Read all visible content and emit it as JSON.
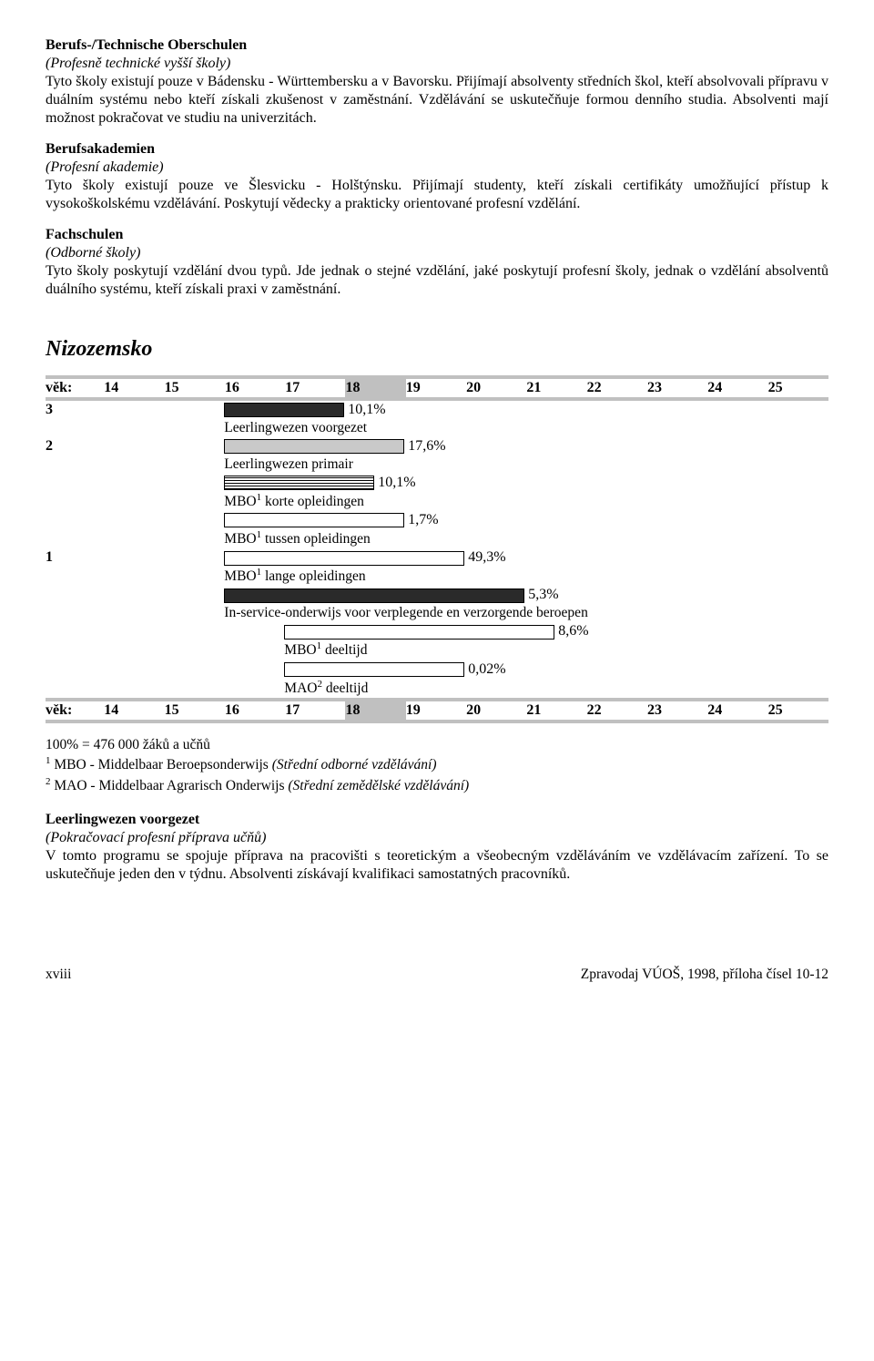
{
  "sections": [
    {
      "title": "Berufs-/Technische Oberschulen",
      "sub": "(Profesně technické vyšší školy)",
      "body": "Tyto školy existují pouze v Bádensku - Württembersku a v Bavorsku. Přijímají absolventy středních škol, kteří absolvovali přípravu v duálním systému nebo kteří získali zkušenost v zaměstnání. Vzdělávání se uskutečňuje formou denního studia. Absolventi mají možnost pokračovat ve studiu na univerzitách."
    },
    {
      "title": "Berufsakademien",
      "sub": "(Profesní akademie)",
      "body": "Tyto školy existují pouze ve Šlesvicku - Holštýnsku. Přijímají studenty, kteří získali certifikáty umožňující přístup k vysokoškolskému vzdělávání. Poskytují vědecky a prakticky orientované profesní vzdělání."
    },
    {
      "title": "Fachschulen",
      "sub": "(Odborné školy)",
      "body": "Tyto školy poskytují vzdělání dvou typů. Jde jednak o stejné vzdělání, jaké poskytují profesní školy, jednak o vzdělání absolventů duálního systému, kteří získali praxi v zaměstnání."
    }
  ],
  "country": "Nizozemsko",
  "ageLabel": "věk:",
  "ages": [
    "14",
    "15",
    "16",
    "17",
    "18",
    "19",
    "20",
    "21",
    "22",
    "23",
    "24",
    "25"
  ],
  "chart": {
    "row1": {
      "level": "3",
      "barClass": "bar-dark",
      "start": 2,
      "span": 2,
      "pct": "10,1%",
      "caption": "Leerlingwezen voorgezet"
    },
    "row2": {
      "level": "2",
      "barClass": "bar-grey",
      "start": 2,
      "span": 3,
      "pct": "17,6%",
      "caption": "Leerlingwezen primair"
    },
    "row3": {
      "level": "",
      "barClass": "bar-hatch",
      "start": 2,
      "span": 2.5,
      "pct": "10,1%",
      "caption": "MBO",
      "sup": "1",
      "caption2": " korte opleidingen"
    },
    "row4": {
      "level": "",
      "barClass": "bar-white",
      "start": 2,
      "span": 3,
      "pct": "1,7%",
      "caption": "MBO",
      "sup": "1",
      "caption2": " tussen opleidingen"
    },
    "row5": {
      "level": "1",
      "barClass": "bar-white",
      "start": 2,
      "span": 4,
      "pct": "49,3%",
      "caption": "MBO",
      "sup": "1",
      "caption2": " lange opleidingen"
    },
    "row6": {
      "level": "",
      "barClass": "bar-dark",
      "start": 2,
      "span": 5,
      "pct": "5,3%",
      "caption": "In-service-onderwijs voor verplegende en verzorgende beroepen"
    },
    "row7": {
      "level": "",
      "barClass": "bar-white",
      "start": 3,
      "span": 4.5,
      "pct": "8,6%",
      "caption": "MBO",
      "sup": "1",
      "caption2": " deeltijd"
    },
    "row8": {
      "level": "",
      "barClass": "bar-white",
      "start": 3,
      "span": 3,
      "pct": "0,02%",
      "caption": "MAO",
      "sup": "2",
      "caption2": " deeltijd"
    }
  },
  "footnotes": {
    "line1": "100% = 476 000 žáků a učňů",
    "line2a": " MBO - Middelbaar Beroepsonderwijs ",
    "line2b": "(Střední odborné vzdělávání)",
    "line3a": " MAO - Middelbaar Agrarisch Onderwijs ",
    "line3b": "(Střední zemědělské vzdělávání)"
  },
  "desc": {
    "title": "Leerlingwezen voorgezet",
    "sub": "(Pokračovací profesní příprava učňů)",
    "body": "V tomto programu se spojuje příprava na pracovišti s teoretickým a všeobecným vzděláváním ve vzdělávacím zařízení. To se uskutečňuje jeden den v týdnu. Absolventi získávají kvalifikaci samostatných pracovníků."
  },
  "footer": {
    "left": "xviii",
    "right": "Zpravodaj VÚOŠ, 1998, příloha čísel 10-12"
  },
  "cellWidth": 66
}
